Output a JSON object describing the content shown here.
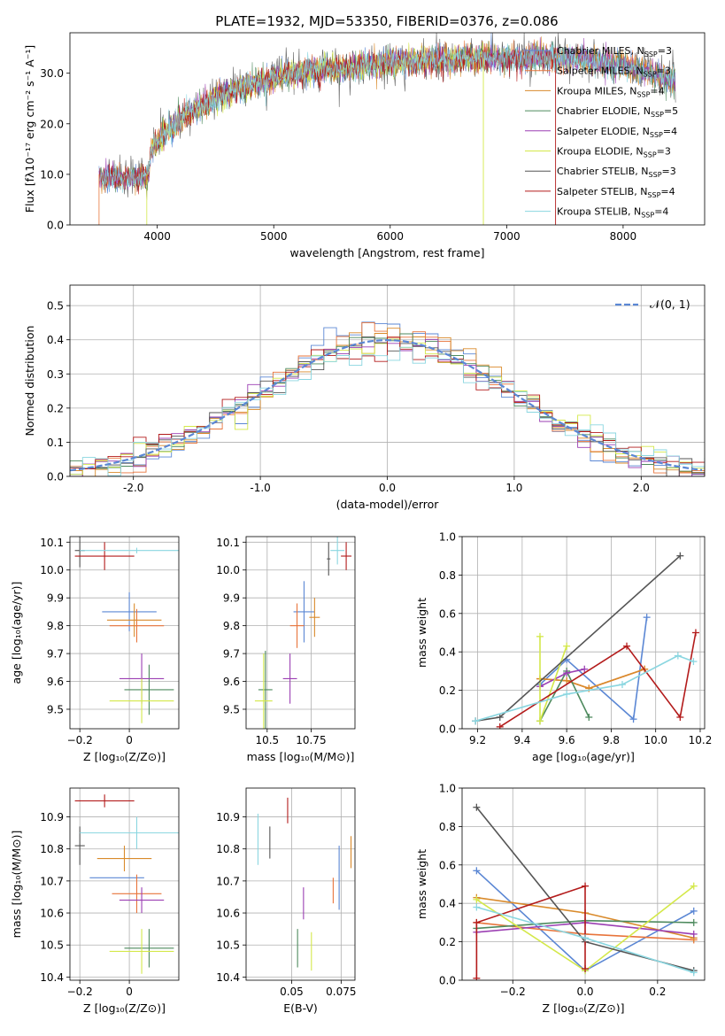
{
  "title": "PLATE=1932, MJD=53350, FIBERID=0376, z=0.086",
  "colors": {
    "Chabrier MILES": "#5b87d4",
    "Salpeter MILES": "#e8743b",
    "Kroupa MILES": "#d98a2b",
    "Chabrier ELODIE": "#4e8a5e",
    "Salpeter ELODIE": "#9b3fb3",
    "Kroupa ELODIE": "#d4e84a",
    "Chabrier STELIB": "#555555",
    "Salpeter STELIB": "#b31b1b",
    "Kroupa STELIB": "#8ad6e0"
  },
  "chart_data": [
    {
      "id": "spectrum",
      "type": "line",
      "xlabel": "wavelength [Angstrom, rest frame]",
      "ylabel": "Flux [fλ10⁻¹⁷ erg cm⁻² s⁻¹ A⁻¹]",
      "xlim": [
        3250,
        8700
      ],
      "ylim": [
        0,
        38
      ],
      "xticks": [
        4000,
        5000,
        6000,
        7000,
        8000
      ],
      "yticks": [
        0,
        10,
        20,
        30
      ],
      "legend_position": "top-right",
      "legend": [
        {
          "name": "Chabrier MILES",
          "nssp": "3"
        },
        {
          "name": "Salpeter MILES",
          "nssp": "3"
        },
        {
          "name": "Kroupa MILES",
          "nssp": "4"
        },
        {
          "name": "Chabrier ELODIE",
          "nssp": "5"
        },
        {
          "name": "Salpeter ELODIE",
          "nssp": "4"
        },
        {
          "name": "Kroupa ELODIE",
          "nssp": "3"
        },
        {
          "name": "Chabrier STELIB",
          "nssp": "3"
        },
        {
          "name": "Salpeter STELIB",
          "nssp": "4"
        },
        {
          "name": "Kroupa STELIB",
          "nssp": "4"
        }
      ],
      "continuum": [
        [
          3500,
          9.5
        ],
        [
          3700,
          9.3
        ],
        [
          3850,
          9.6
        ],
        [
          3920,
          9.2
        ],
        [
          3950,
          15
        ],
        [
          4100,
          19
        ],
        [
          4300,
          22.5
        ],
        [
          4500,
          25
        ],
        [
          4700,
          27
        ],
        [
          5000,
          29
        ],
        [
          5300,
          30.5
        ],
        [
          5600,
          31
        ],
        [
          5900,
          31.8
        ],
        [
          6200,
          32.3
        ],
        [
          6500,
          32.6
        ],
        [
          6800,
          33
        ],
        [
          7100,
          33
        ],
        [
          7400,
          33.3
        ],
        [
          7700,
          32.5
        ],
        [
          8000,
          31.5
        ],
        [
          8300,
          29.5
        ],
        [
          8450,
          28.3
        ]
      ],
      "series_starts": [
        3500,
        3500,
        3500,
        3500,
        3500,
        3900,
        3530,
        3500,
        3500
      ],
      "series_ends": [
        8450,
        8450,
        8450,
        8450,
        8450,
        6800,
        8450,
        7420,
        8450
      ]
    },
    {
      "id": "residuals",
      "type": "histogram",
      "xlabel": "(data-model)/error",
      "ylabel": "Normed distribution",
      "xlim": [
        -2.5,
        2.5
      ],
      "ylim": [
        0,
        0.56
      ],
      "xticks": [
        -2,
        -1,
        0,
        1,
        2
      ],
      "yticks": [
        0.0,
        0.1,
        0.2,
        0.3,
        0.4,
        0.5
      ],
      "legend": "𝒩(0, 1)",
      "legend_position": "top-right",
      "reference_curve": "gaussian mean 0 sigma 1"
    },
    {
      "id": "age-vs-Z",
      "type": "errorbar",
      "xlabel": "Z [log₁₀(Z/Z⊙)]",
      "ylabel": "age  [log₁₀(age/yr)]",
      "xlim": [
        -0.24,
        0.2
      ],
      "ylim": [
        9.43,
        10.12
      ],
      "xticks": [
        -0.2,
        0.0
      ],
      "yticks": [
        9.5,
        9.6,
        9.7,
        9.8,
        9.9,
        10.0,
        10.1
      ],
      "points": [
        {
          "series": "Chabrier MILES",
          "x": 0.0,
          "y": 9.85,
          "xerr": 0.11,
          "yerr": 0.07
        },
        {
          "series": "Salpeter MILES",
          "x": 0.03,
          "y": 9.8,
          "xerr": 0.11,
          "yerr": 0.06
        },
        {
          "series": "Kroupa MILES",
          "x": 0.02,
          "y": 9.82,
          "xerr": 0.11,
          "yerr": 0.06
        },
        {
          "series": "Chabrier ELODIE",
          "x": 0.08,
          "y": 9.57,
          "xerr": 0.1,
          "yerr": 0.09
        },
        {
          "series": "Salpeter ELODIE",
          "x": 0.05,
          "y": 9.61,
          "xerr": 0.09,
          "yerr": 0.09
        },
        {
          "series": "Kroupa ELODIE",
          "x": 0.05,
          "y": 9.53,
          "xerr": 0.13,
          "yerr": 0.08
        },
        {
          "series": "Chabrier STELIB",
          "x": -0.2,
          "y": 10.07,
          "xerr": 0.02,
          "yerr": 0.06
        },
        {
          "series": "Salpeter STELIB",
          "x": -0.1,
          "y": 10.05,
          "xerr": 0.12,
          "yerr": 0.05
        },
        {
          "series": "Kroupa STELIB",
          "x": 0.03,
          "y": 10.07,
          "xerr": 0.23,
          "yerr": 0.01
        }
      ]
    },
    {
      "id": "age-vs-mass",
      "type": "errorbar",
      "xlabel": "mass [log₁₀(M/M⊙)]",
      "ylabel": "",
      "xlim": [
        10.38,
        11.0
      ],
      "ylim": [
        9.43,
        10.12
      ],
      "xticks": [
        10.5,
        10.75
      ],
      "yticks": [
        9.5,
        9.6,
        9.7,
        9.8,
        9.9,
        10.0,
        10.1
      ],
      "points": [
        {
          "series": "Chabrier MILES",
          "x": 10.71,
          "y": 9.85,
          "xerr": 0.06,
          "yerr": 0.11
        },
        {
          "series": "Salpeter MILES",
          "x": 10.67,
          "y": 9.8,
          "xerr": 0.04,
          "yerr": 0.08
        },
        {
          "series": "Kroupa MILES",
          "x": 10.77,
          "y": 9.83,
          "xerr": 0.03,
          "yerr": 0.07
        },
        {
          "series": "Chabrier ELODIE",
          "x": 10.49,
          "y": 9.57,
          "xerr": 0.04,
          "yerr": 0.14
        },
        {
          "series": "Salpeter ELODIE",
          "x": 10.63,
          "y": 9.61,
          "xerr": 0.04,
          "yerr": 0.09
        },
        {
          "series": "Kroupa ELODIE",
          "x": 10.48,
          "y": 9.53,
          "xerr": 0.05,
          "yerr": 0.17
        },
        {
          "series": "Chabrier STELIB",
          "x": 10.85,
          "y": 10.04,
          "xerr": 0.01,
          "yerr": 0.06
        },
        {
          "series": "Salpeter STELIB",
          "x": 10.95,
          "y": 10.05,
          "xerr": 0.03,
          "yerr": 0.05
        },
        {
          "series": "Kroupa STELIB",
          "x": 10.9,
          "y": 10.07,
          "xerr": 0.04,
          "yerr": 0.05
        }
      ]
    },
    {
      "id": "weight-vs-age",
      "type": "line",
      "xlabel": "age  [log₁₀(age/yr)]",
      "ylabel": "mass weight",
      "xlim": [
        9.13,
        10.22
      ],
      "ylim": [
        0,
        1
      ],
      "xticks": [
        9.2,
        9.4,
        9.6,
        9.8,
        10.0,
        10.2
      ],
      "yticks": [
        0.0,
        0.2,
        0.4,
        0.6,
        0.8,
        1.0
      ],
      "series": [
        {
          "name": "Chabrier MILES",
          "points": [
            [
              9.48,
              0.23
            ],
            [
              9.6,
              0.36
            ],
            [
              9.9,
              0.05
            ],
            [
              9.96,
              0.58
            ]
          ]
        },
        {
          "name": "Salpeter MILES",
          "points": [
            [
              9.48,
              0.26
            ],
            [
              9.6,
              0.25
            ],
            [
              9.7,
              0.21
            ],
            [
              9.95,
              0.31
            ]
          ]
        },
        {
          "name": "Kroupa MILES",
          "points": [
            [
              9.48,
              0.26
            ],
            [
              9.6,
              0.25
            ],
            [
              9.7,
              0.21
            ],
            [
              9.95,
              0.31
            ]
          ]
        },
        {
          "name": "Chabrier ELODIE",
          "points": [
            [
              9.48,
              0.04
            ],
            [
              9.6,
              0.3
            ],
            [
              9.7,
              0.06
            ]
          ]
        },
        {
          "name": "Salpeter ELODIE",
          "points": [
            [
              9.48,
              0.22
            ],
            [
              9.6,
              0.29
            ],
            [
              9.68,
              0.31
            ]
          ]
        },
        {
          "name": "Kroupa ELODIE",
          "points": [
            [
              9.48,
              0.48
            ],
            [
              9.48,
              0.04
            ],
            [
              9.6,
              0.43
            ]
          ]
        },
        {
          "name": "Chabrier STELIB",
          "points": [
            [
              9.19,
              0.04
            ],
            [
              9.3,
              0.06
            ],
            [
              10.11,
              0.9
            ]
          ]
        },
        {
          "name": "Salpeter STELIB",
          "points": [
            [
              9.3,
              0.01
            ],
            [
              9.87,
              0.43
            ],
            [
              10.11,
              0.06
            ],
            [
              10.18,
              0.5
            ]
          ]
        },
        {
          "name": "Kroupa STELIB",
          "points": [
            [
              9.19,
              0.04
            ],
            [
              9.6,
              0.18
            ],
            [
              9.85,
              0.23
            ],
            [
              10.1,
              0.38
            ],
            [
              10.17,
              0.35
            ]
          ]
        }
      ]
    },
    {
      "id": "mass-vs-Z",
      "type": "errorbar",
      "xlabel": "Z [log₁₀(Z/Z⊙)]",
      "ylabel": "mass [log₁₀(M/M⊙)]",
      "xlim": [
        -0.24,
        0.2
      ],
      "ylim": [
        10.39,
        10.99
      ],
      "xticks": [
        -0.2,
        0.0
      ],
      "yticks": [
        10.4,
        10.5,
        10.6,
        10.7,
        10.8,
        10.9
      ],
      "points": [
        {
          "series": "Chabrier MILES",
          "x": -0.05,
          "y": 10.71,
          "xerr": 0.11,
          "yerr": 0.0
        },
        {
          "series": "Salpeter MILES",
          "x": 0.03,
          "y": 10.66,
          "xerr": 0.1,
          "yerr": 0.06
        },
        {
          "series": "Kroupa MILES",
          "x": -0.02,
          "y": 10.77,
          "xerr": 0.11,
          "yerr": 0.04
        },
        {
          "series": "Chabrier ELODIE",
          "x": 0.08,
          "y": 10.49,
          "xerr": 0.1,
          "yerr": 0.06
        },
        {
          "series": "Salpeter ELODIE",
          "x": 0.05,
          "y": 10.64,
          "xerr": 0.09,
          "yerr": 0.04
        },
        {
          "series": "Kroupa ELODIE",
          "x": 0.05,
          "y": 10.48,
          "xerr": 0.13,
          "yerr": 0.07
        },
        {
          "series": "Chabrier STELIB",
          "x": -0.2,
          "y": 10.81,
          "xerr": 0.02,
          "yerr": 0.06
        },
        {
          "series": "Salpeter STELIB",
          "x": -0.1,
          "y": 10.95,
          "xerr": 0.12,
          "yerr": 0.02
        },
        {
          "series": "Kroupa STELIB",
          "x": 0.03,
          "y": 10.85,
          "xerr": 0.23,
          "yerr": 0.05
        }
      ]
    },
    {
      "id": "mass-vs-ebv",
      "type": "errorbar",
      "xlabel": "E(B-V)",
      "ylabel": "",
      "xlim": [
        0.027,
        0.082
      ],
      "ylim": [
        10.39,
        10.99
      ],
      "xticks": [
        0.05,
        0.075
      ],
      "yticks": [
        10.4,
        10.5,
        10.6,
        10.7,
        10.8,
        10.9
      ],
      "points": [
        {
          "series": "Chabrier MILES",
          "x": 0.074,
          "y": 10.71,
          "xerr": 0.0,
          "yerr": 0.1
        },
        {
          "series": "Salpeter MILES",
          "x": 0.071,
          "y": 10.67,
          "xerr": 0.0,
          "yerr": 0.04
        },
        {
          "series": "Kroupa MILES",
          "x": 0.08,
          "y": 10.79,
          "xerr": 0.0,
          "yerr": 0.05
        },
        {
          "series": "Chabrier ELODIE",
          "x": 0.053,
          "y": 10.49,
          "xerr": 0.0,
          "yerr": 0.06
        },
        {
          "series": "Salpeter ELODIE",
          "x": 0.056,
          "y": 10.63,
          "xerr": 0.0,
          "yerr": 0.05
        },
        {
          "series": "Kroupa ELODIE",
          "x": 0.06,
          "y": 10.48,
          "xerr": 0.0,
          "yerr": 0.06
        },
        {
          "series": "Chabrier STELIB",
          "x": 0.039,
          "y": 10.82,
          "xerr": 0.0,
          "yerr": 0.05
        },
        {
          "series": "Salpeter STELIB",
          "x": 0.048,
          "y": 10.92,
          "xerr": 0.0,
          "yerr": 0.04
        },
        {
          "series": "Kroupa STELIB",
          "x": 0.033,
          "y": 10.83,
          "xerr": 0.0,
          "yerr": 0.08
        }
      ]
    },
    {
      "id": "weight-vs-Z",
      "type": "line",
      "xlabel": "Z [log₁₀(Z/Z⊙)]",
      "ylabel": "mass weight",
      "xlim": [
        -0.34,
        0.33
      ],
      "ylim": [
        0,
        1
      ],
      "xticks": [
        -0.2,
        0.0,
        0.2
      ],
      "yticks": [
        0.0,
        0.2,
        0.4,
        0.6,
        0.8,
        1.0
      ],
      "series": [
        {
          "name": "Chabrier MILES",
          "points": [
            [
              -0.3,
              0.57
            ],
            [
              0.0,
              0.05
            ],
            [
              0.3,
              0.36
            ]
          ]
        },
        {
          "name": "Salpeter MILES",
          "points": [
            [
              -0.3,
              0.3
            ],
            [
              0.0,
              0.24
            ],
            [
              0.3,
              0.21
            ]
          ]
        },
        {
          "name": "Kroupa MILES",
          "points": [
            [
              -0.3,
              0.43
            ],
            [
              0.0,
              0.35
            ],
            [
              0.3,
              0.22
            ]
          ]
        },
        {
          "name": "Chabrier ELODIE",
          "points": [
            [
              -0.3,
              0.27
            ],
            [
              0.0,
              0.31
            ],
            [
              0.3,
              0.3
            ]
          ]
        },
        {
          "name": "Salpeter ELODIE",
          "points": [
            [
              -0.3,
              0.25
            ],
            [
              0.0,
              0.3
            ],
            [
              0.3,
              0.24
            ]
          ]
        },
        {
          "name": "Kroupa ELODIE",
          "points": [
            [
              -0.3,
              0.42
            ],
            [
              0.0,
              0.05
            ],
            [
              0.3,
              0.49
            ]
          ]
        },
        {
          "name": "Chabrier STELIB",
          "points": [
            [
              -0.3,
              0.9
            ],
            [
              0.0,
              0.2
            ],
            [
              0.3,
              0.05
            ]
          ]
        },
        {
          "name": "Salpeter STELIB",
          "points": [
            [
              -0.3,
              0.01
            ],
            [
              -0.3,
              0.3
            ],
            [
              0.0,
              0.49
            ],
            [
              0.0,
              0.06
            ]
          ]
        },
        {
          "name": "Kroupa STELIB",
          "points": [
            [
              -0.3,
              0.38
            ],
            [
              0.0,
              0.22
            ],
            [
              0.3,
              0.04
            ]
          ]
        }
      ]
    }
  ]
}
